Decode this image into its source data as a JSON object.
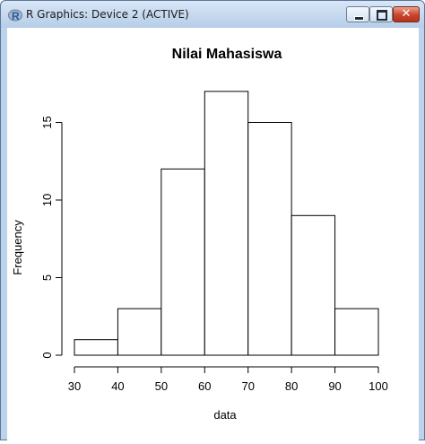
{
  "window": {
    "title": "R Graphics: Device 2 (ACTIVE)",
    "close_glyph": "✕"
  },
  "chart_data": {
    "type": "bar",
    "title": "Nilai Mahasiswa",
    "xlabel": "data",
    "ylabel": "Frequency",
    "bins": [
      {
        "x0": 30,
        "x1": 40,
        "count": 1
      },
      {
        "x0": 40,
        "x1": 50,
        "count": 3
      },
      {
        "x0": 50,
        "x1": 60,
        "count": 12
      },
      {
        "x0": 60,
        "x1": 70,
        "count": 17
      },
      {
        "x0": 70,
        "x1": 80,
        "count": 15
      },
      {
        "x0": 80,
        "x1": 90,
        "count": 9
      },
      {
        "x0": 90,
        "x1": 100,
        "count": 3
      }
    ],
    "xticks": [
      30,
      40,
      50,
      60,
      70,
      80,
      90,
      100
    ],
    "yticks": [
      0,
      5,
      10,
      15
    ],
    "xlim": [
      30,
      100
    ],
    "ylim": [
      0,
      17
    ],
    "grid": false,
    "colors": {
      "bar_fill": "#ffffff",
      "bar_stroke": "#000000"
    }
  }
}
